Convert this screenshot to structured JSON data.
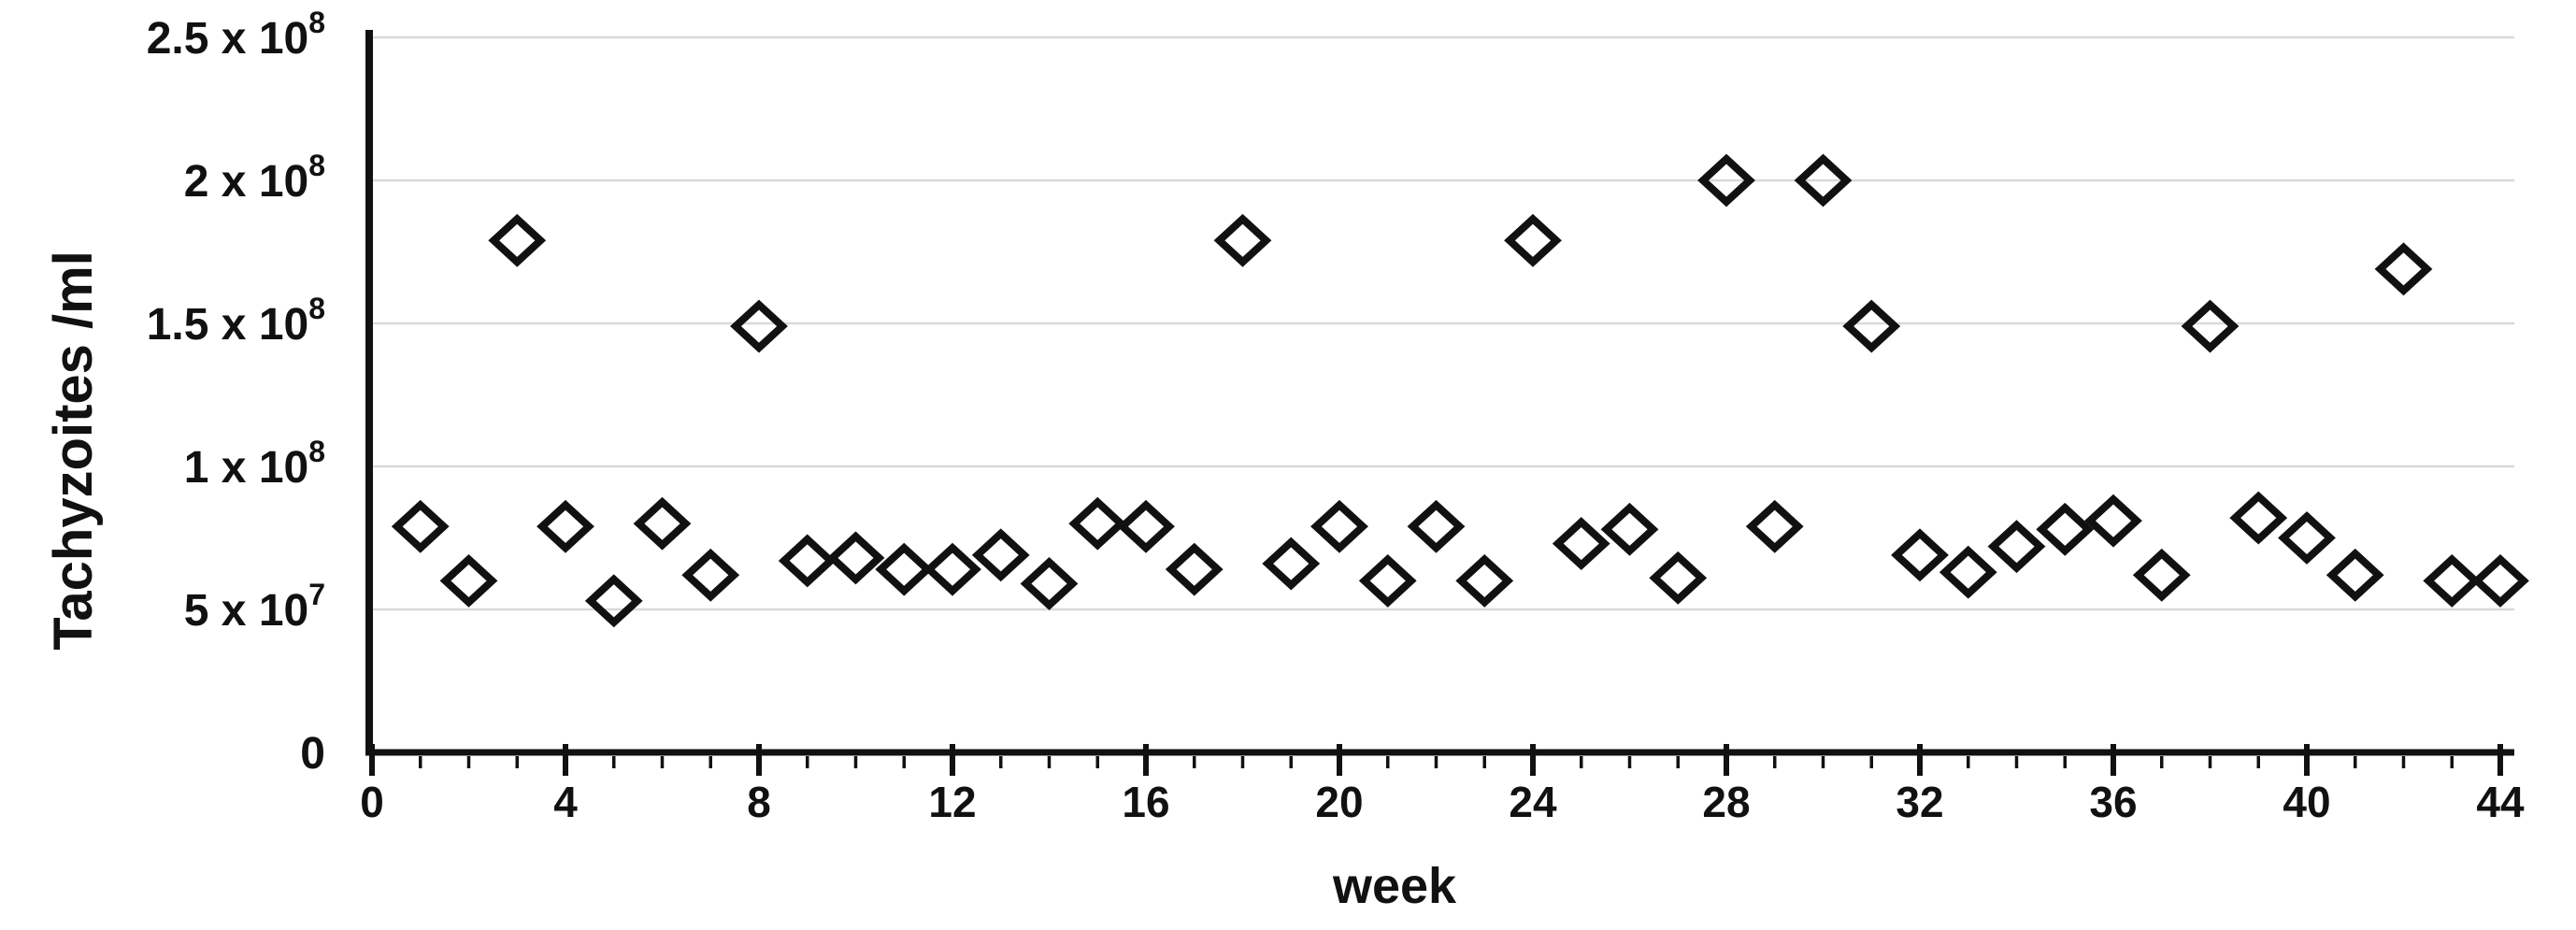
{
  "figure": {
    "background": "#ffffff",
    "axis_color": "#111111",
    "grid_color": "#d9d9d9",
    "text_color": "#111111",
    "marker": {
      "shape": "open-diamond",
      "stroke_color": "#111111",
      "fill": "none"
    }
  },
  "chart_data": {
    "type": "scatter",
    "title": "",
    "xlabel": "week",
    "ylabel": "Tachyzoites /ml",
    "xlim": [
      0,
      44.6
    ],
    "ylim": [
      0,
      250000000
    ],
    "grid": "horizontal",
    "legend": "none",
    "x_minor_tick_step": 1,
    "x_major_tick_step": 4,
    "x_tick_labels": [
      0,
      4,
      8,
      12,
      16,
      20,
      24,
      28,
      32,
      36,
      40,
      44
    ],
    "y_ticks": [
      {
        "main": "2.5 x 10",
        "sup": "8",
        "value": 250000000
      },
      {
        "main": "2 x 10",
        "sup": "8",
        "value": 200000000
      },
      {
        "main": "1.5 x 10",
        "sup": "8",
        "value": 150000000
      },
      {
        "main": "1 x 10",
        "sup": "8",
        "value": 100000000
      },
      {
        "main": "5 x 10",
        "sup": "7",
        "value": 50000000
      },
      {
        "main": "0",
        "sup": "",
        "value": 0
      }
    ],
    "weeks": [
      1,
      2,
      3,
      4,
      5,
      6,
      7,
      8,
      9,
      10,
      11,
      12,
      13,
      14,
      15,
      16,
      17,
      18,
      19,
      20,
      21,
      22,
      23,
      24,
      25,
      26,
      27,
      28,
      29,
      30,
      31,
      32,
      33,
      34,
      35,
      36,
      37,
      38,
      39,
      40,
      41,
      42,
      43,
      44
    ],
    "values": [
      79000000,
      60000000,
      179000000,
      79000000,
      53000000,
      80000000,
      62000000,
      149000000,
      67000000,
      68000000,
      64000000,
      64000000,
      69000000,
      59000000,
      80000000,
      79000000,
      64000000,
      179000000,
      66000000,
      79000000,
      60000000,
      79000000,
      60000000,
      179000000,
      73000000,
      78000000,
      61000000,
      200000000,
      79000000,
      200000000,
      149000000,
      69000000,
      63000000,
      72000000,
      78000000,
      81000000,
      62000000,
      149000000,
      82000000,
      75000000,
      62000000,
      169000000,
      60000000,
      60000000
    ]
  }
}
